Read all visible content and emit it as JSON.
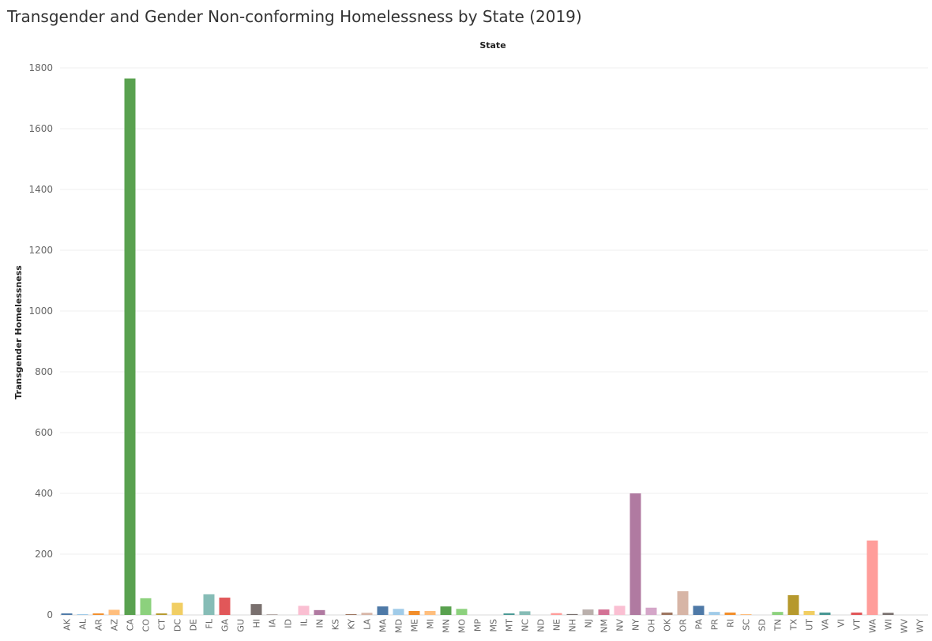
{
  "chart_data": {
    "type": "bar",
    "title": "Transgender and Gender Non-conforming Homelessness by State (2019)",
    "header_label": "State",
    "xlabel": "",
    "ylabel": "Transgender Homelessness",
    "ylim": [
      0,
      1850
    ],
    "yticks": [
      0,
      200,
      400,
      600,
      800,
      1000,
      1200,
      1400,
      1600,
      1800
    ],
    "grid": true,
    "legend": "none",
    "categories": [
      "AK",
      "AL",
      "AR",
      "AZ",
      "CA",
      "CO",
      "CT",
      "DC",
      "DE",
      "FL",
      "GA",
      "GU",
      "HI",
      "IA",
      "ID",
      "IL",
      "IN",
      "KS",
      "KY",
      "LA",
      "MA",
      "MD",
      "ME",
      "MI",
      "MN",
      "MO",
      "MP",
      "MS",
      "MT",
      "NC",
      "ND",
      "NE",
      "NH",
      "NJ",
      "NM",
      "NV",
      "NY",
      "OH",
      "OK",
      "OR",
      "PA",
      "PR",
      "RI",
      "SC",
      "SD",
      "TN",
      "TX",
      "UT",
      "VA",
      "VI",
      "VT",
      "WA",
      "WI",
      "WV",
      "WY"
    ],
    "values": [
      5,
      2,
      5,
      17,
      1765,
      55,
      5,
      40,
      0,
      68,
      57,
      0,
      36,
      2,
      0,
      30,
      16,
      0,
      2,
      7,
      28,
      20,
      13,
      13,
      28,
      20,
      0,
      0,
      5,
      12,
      0,
      6,
      3,
      18,
      18,
      30,
      400,
      24,
      8,
      78,
      30,
      10,
      8,
      2,
      0,
      10,
      65,
      13,
      8,
      0,
      8,
      245,
      7,
      0,
      0
    ],
    "colors": [
      "#4e79a7",
      "#a0cbe8",
      "#f28e2b",
      "#ffbe7d",
      "#59a14f",
      "#8cd17d",
      "#b6992d",
      "#f1ce63",
      "#499894",
      "#86bcb6",
      "#e15759",
      "#ff9d9a",
      "#79706e",
      "#bab0ac",
      "#d37295",
      "#fabfd2",
      "#b07aa1",
      "#d4a6c8",
      "#9d7660",
      "#d7b5a6"
    ]
  }
}
